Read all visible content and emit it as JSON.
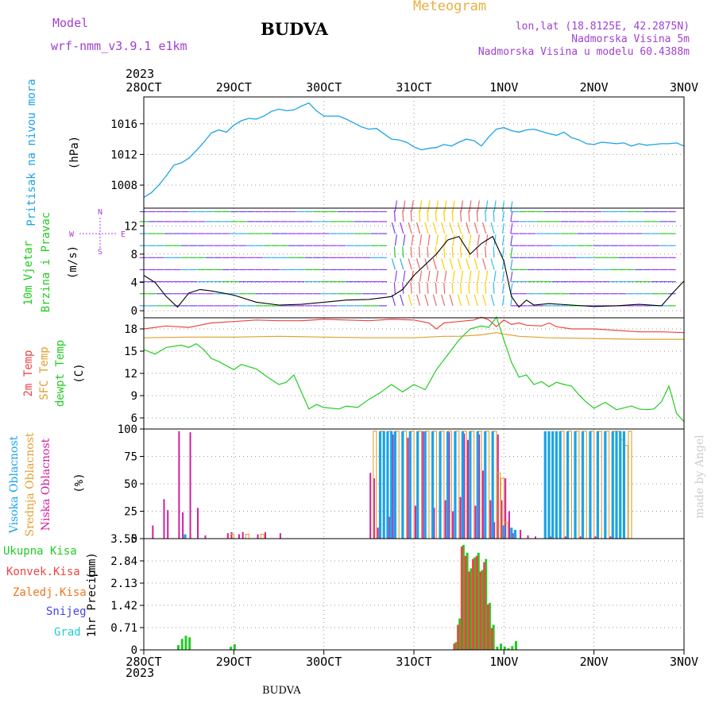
{
  "header": {
    "model_label": "Model",
    "model_name": "wrf-nmm_v3.9.1  e1km",
    "station": "BUDVA",
    "chart_name": "Meteogram",
    "lonlat": "lon,lat (18.8125E, 42.2875N)",
    "elevation": "Nadmorska Visina 5m",
    "model_elevation": "Nadmorska Visina u modelu 60.4388m",
    "year_top": "2023",
    "year_bottom": "2023",
    "footer_station": "BUDVA",
    "credit": "made by Angel"
  },
  "colors": {
    "pressure": "#1aa3e8",
    "wind_label": "#22cc22",
    "wind_dir": "#b040e0",
    "t2m": "#ee4444",
    "sfc": "#e0a030",
    "dewpt": "#22cc22",
    "cloud_high": "#1aa3e8",
    "cloud_mid": "#e0a030",
    "cloud_low": "#d020a0",
    "precip_total": "#22cc22",
    "precip_conv": "#ee4444",
    "precip_frz": "#ee7722",
    "snow": "#4444ee",
    "hail": "#22cccc"
  },
  "chart_data": [
    {
      "type": "line",
      "ylabel": "Pritisak na nivou mora",
      "unit": "(hPa)",
      "x_ticks": [
        "28OCT",
        "29OCT",
        "30OCT",
        "31OCT",
        "1NOV",
        "2NOV",
        "3NOV"
      ],
      "xlim": [
        0,
        144
      ],
      "ylim": [
        1005,
        1019.5
      ],
      "y_ticks": [
        1008,
        1012,
        1016
      ],
      "grid": true,
      "series": [
        {
          "x": [
            0,
            2,
            4,
            6,
            8,
            10,
            12,
            14,
            16,
            18,
            20,
            22,
            24,
            26,
            28,
            30,
            32,
            34,
            36,
            38,
            40,
            42,
            44,
            46,
            48,
            50,
            52,
            54,
            56,
            58,
            60,
            62,
            64,
            66,
            68,
            70,
            72,
            74,
            76,
            78,
            80,
            82,
            84,
            86,
            88,
            90,
            92,
            94,
            96,
            98,
            100,
            102,
            104,
            106,
            108,
            110,
            112,
            114,
            116,
            118,
            120,
            122,
            124,
            126,
            128,
            130,
            132,
            134,
            136,
            138,
            140,
            142,
            144
          ],
          "y": [
            1006.4,
            1007,
            1008,
            1009.2,
            1010.6,
            1010.9,
            1011.5,
            1012.5,
            1013.6,
            1014.8,
            1015.2,
            1014.9,
            1015.8,
            1016.4,
            1016.7,
            1016.6,
            1017,
            1017.6,
            1017.9,
            1017.7,
            1017.8,
            1018.3,
            1018.7,
            1017.7,
            1017,
            1017,
            1017,
            1016.6,
            1016.1,
            1015.6,
            1015.3,
            1015.4,
            1014.7,
            1014,
            1013.9,
            1013.6,
            1013,
            1012.6,
            1012.8,
            1012.9,
            1013.3,
            1013.1,
            1013.6,
            1014,
            1013.8,
            1013.1,
            1014.3,
            1015.3,
            1015.5,
            1015.1,
            1014.9,
            1015.2,
            1015.3,
            1015,
            1014.7,
            1014.5,
            1014.9,
            1014.2,
            1013.9,
            1013.4,
            1013.3,
            1013.6,
            1013.5,
            1013.4,
            1013.5,
            1013.1,
            1013.4,
            1013.2,
            1013.3,
            1013.4,
            1013.4,
            1013.5,
            1013.1
          ]
        }
      ]
    },
    {
      "type": "line",
      "ylabel": "10m Vjetar Brzina i Pravac",
      "unit": "(m/s)",
      "direction_key": {
        "top": "N",
        "left": "W",
        "right": "E",
        "bottom": "S"
      },
      "ylim": [
        -1,
        14.5
      ],
      "y_ticks": [
        0,
        4,
        8,
        12
      ],
      "grid": true,
      "series": [
        {
          "name": "speed",
          "x": [
            0,
            3,
            6,
            9,
            12,
            15,
            18,
            21,
            24,
            30,
            36,
            42,
            48,
            54,
            60,
            66,
            69,
            72,
            75,
            78,
            81,
            84,
            87,
            90,
            93,
            96,
            98,
            100,
            102,
            104,
            108,
            114,
            120,
            126,
            132,
            138,
            141,
            144
          ],
          "y": [
            5,
            4,
            2,
            0.5,
            2.5,
            3,
            2.8,
            2.5,
            2.2,
            1.2,
            0.8,
            0.9,
            1.2,
            1.5,
            1.6,
            2,
            3,
            5,
            6.5,
            8,
            10,
            10.5,
            8,
            9.5,
            10.5,
            7,
            2,
            0.5,
            1.5,
            0.8,
            1,
            0.8,
            0.6,
            0.7,
            0.9,
            0.7,
            2.5,
            4.2
          ]
        }
      ]
    },
    {
      "type": "line",
      "ylabel": [
        "2m Temp",
        "SFC Temp",
        "dewpt Temp"
      ],
      "unit": "(C)",
      "ylim": [
        4.5,
        19.5
      ],
      "y_ticks": [
        6,
        9,
        12,
        15,
        18
      ],
      "grid": true,
      "series": [
        {
          "name": "2m Temp",
          "x": [
            0,
            6,
            12,
            18,
            24,
            30,
            36,
            42,
            48,
            54,
            60,
            66,
            72,
            76,
            78,
            80,
            84,
            88,
            90,
            92,
            94,
            96,
            98,
            100,
            102,
            106,
            108,
            110,
            114,
            120,
            126,
            132,
            138,
            144
          ],
          "y": [
            18,
            18.4,
            18.2,
            18.8,
            19,
            19.2,
            19.1,
            19.1,
            19.3,
            19.2,
            19.1,
            19.3,
            19.2,
            18.8,
            18,
            18.8,
            19,
            19.2,
            19.6,
            19.2,
            18.3,
            19.2,
            18.6,
            18.8,
            18.5,
            18.4,
            18.8,
            18.3,
            18,
            18,
            17.8,
            17.6,
            17.6,
            17.5
          ]
        },
        {
          "name": "SFC Temp",
          "x": [
            0,
            12,
            24,
            36,
            48,
            60,
            72,
            80,
            84,
            90,
            94,
            96,
            100,
            108,
            120,
            132,
            144
          ],
          "y": [
            16.8,
            16.9,
            16.9,
            17,
            16.9,
            16.8,
            16.8,
            17,
            17,
            17.2,
            17.5,
            17.3,
            17,
            16.8,
            16.7,
            16.6,
            16.6
          ]
        },
        {
          "name": "dewpt Temp",
          "x": [
            0,
            3,
            6,
            10,
            12,
            14,
            16,
            18,
            20,
            24,
            26,
            30,
            33,
            36,
            38,
            40,
            42,
            44,
            46,
            48,
            52,
            54,
            57,
            60,
            63,
            66,
            69,
            72,
            75,
            78,
            81,
            84,
            87,
            90,
            92,
            94,
            96,
            98,
            100,
            102,
            104,
            106,
            108,
            110,
            112,
            114,
            116,
            118,
            120,
            123,
            126,
            130,
            132,
            134,
            136,
            138,
            140,
            142,
            144
          ],
          "y": [
            15.2,
            14.6,
            15.5,
            15.8,
            15.5,
            16,
            15.2,
            14,
            13.6,
            12.5,
            13.2,
            12.6,
            11.5,
            10.5,
            10.8,
            11.8,
            9.5,
            7.2,
            7.8,
            7.4,
            7.2,
            7.6,
            7.4,
            8.5,
            9.4,
            10.5,
            9.5,
            10.5,
            9.8,
            12.5,
            14.5,
            16.5,
            18,
            18.4,
            18.2,
            19.6,
            16.5,
            13.5,
            11.5,
            11.8,
            10.5,
            10.9,
            10.2,
            10.8,
            10.5,
            10.3,
            9.1,
            8.1,
            7.3,
            8.1,
            7.1,
            7.6,
            7.2,
            7.1,
            7.2,
            8.2,
            10.3,
            6.6,
            5.5
          ]
        }
      ]
    },
    {
      "type": "bar",
      "ylabel": [
        "Visoka Oblacnost",
        "Srednja Oblacnost",
        "Niska Oblacnost"
      ],
      "unit": "(%)",
      "ylim": [
        0,
        100
      ],
      "y_ticks": [
        0,
        25,
        50,
        75,
        100
      ],
      "grid": true,
      "series": [
        {
          "name": "Niska Oblacnost",
          "x": [
            2,
            5,
            6,
            9,
            10,
            12,
            14,
            16,
            22,
            23,
            25,
            26,
            30,
            32,
            36,
            60,
            61,
            62,
            65,
            66,
            70,
            72,
            74,
            77,
            80,
            81,
            82,
            84,
            85,
            86,
            88,
            89,
            90,
            92,
            93,
            94,
            95,
            96,
            97,
            98,
            100,
            102,
            104,
            108,
            112,
            116,
            120,
            124
          ],
          "y": [
            12,
            36,
            26,
            98,
            24,
            97,
            28,
            3,
            5,
            6,
            4,
            6,
            4,
            6,
            5,
            60,
            55,
            10,
            20,
            95,
            92,
            30,
            98,
            28,
            35,
            97,
            25,
            38,
            96,
            90,
            30,
            95,
            62,
            35,
            15,
            95,
            35,
            55,
            25,
            5,
            8,
            3,
            2,
            2,
            2,
            2,
            2,
            2
          ]
        },
        {
          "name": "Srednja Oblacnost",
          "x": [
            24,
            28,
            32,
            62,
            64,
            66,
            68,
            70,
            72,
            74,
            76,
            78,
            80,
            82,
            84,
            86,
            88,
            90,
            92,
            94,
            95,
            96,
            97,
            112,
            114,
            116,
            118,
            120,
            122,
            124,
            126,
            127,
            128,
            129,
            130
          ],
          "y": [
            4,
            4,
            4,
            98,
            98,
            98,
            98,
            98,
            98,
            98,
            98,
            98,
            98,
            98,
            98,
            98,
            98,
            98,
            98,
            98,
            60,
            55,
            15,
            98,
            98,
            98,
            98,
            98,
            98,
            98,
            98,
            98,
            90,
            85,
            98
          ]
        },
        {
          "name": "Visoka Oblacnost",
          "x": [
            11,
            63,
            64,
            65,
            66,
            67,
            69,
            71,
            73,
            75,
            77,
            79,
            81,
            83,
            85,
            87,
            89,
            91,
            93,
            96,
            98,
            99,
            107,
            108,
            109,
            110,
            111,
            113,
            115,
            117,
            119,
            121,
            123,
            125,
            126,
            127,
            128
          ],
          "y": [
            4,
            98,
            98,
            98,
            98,
            98,
            98,
            98,
            98,
            98,
            98,
            98,
            98,
            98,
            98,
            98,
            98,
            98,
            98,
            12,
            10,
            8,
            98,
            98,
            98,
            98,
            98,
            98,
            98,
            98,
            98,
            98,
            98,
            98,
            98,
            98,
            98
          ]
        }
      ]
    },
    {
      "type": "bar",
      "ylabel": "1hr Precip",
      "unit": "(mm)",
      "ylim": [
        0,
        3.55
      ],
      "y_ticks": [
        0,
        0.71,
        1.42,
        2.13,
        2.84,
        3.55
      ],
      "y_tick_labels": [
        "0",
        "0.71",
        "1.42",
        "2.13",
        "2.84",
        "3.55"
      ],
      "grid": true,
      "series_names": [
        "Ukupna  Kisa",
        "Konvek.Kisa",
        "Zaledj.Kisa",
        "Snijeg",
        "Grad"
      ],
      "series": [
        {
          "name": "Ukupna  Kisa",
          "x": [
            9,
            10,
            11,
            12,
            23,
            24,
            83,
            84,
            85,
            86,
            87,
            88,
            89,
            90,
            91,
            92,
            93,
            94,
            95,
            96,
            97,
            98,
            99
          ],
          "y": [
            0.15,
            0.35,
            0.45,
            0.4,
            0.1,
            0.18,
            0.25,
            1.0,
            3.35,
            3.1,
            2.6,
            2.95,
            3.1,
            2.55,
            2.9,
            1.5,
            0.8,
            0.1,
            0.2,
            0.1,
            0.05,
            0.12,
            0.28
          ]
        },
        {
          "name": "Konvek.Kisa",
          "x": [
            83,
            84,
            85,
            86,
            87,
            88,
            89,
            90,
            91,
            92,
            93
          ],
          "y": [
            0.2,
            0.8,
            3.3,
            3.0,
            2.5,
            2.9,
            3.0,
            2.5,
            2.8,
            1.45,
            0.7
          ]
        }
      ]
    }
  ]
}
